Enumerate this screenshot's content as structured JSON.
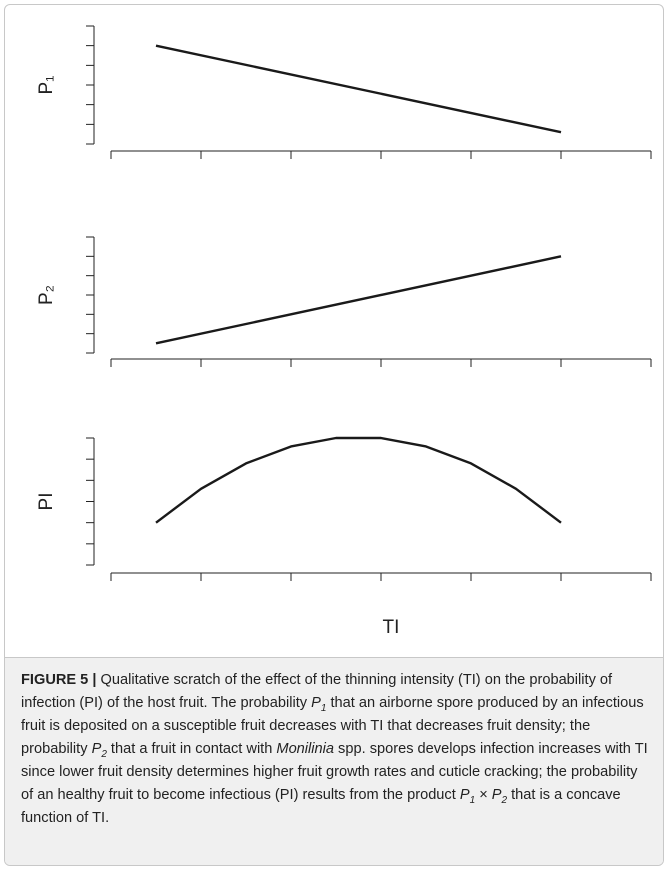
{
  "chart_data": [
    {
      "type": "line",
      "ylabel": "P₁",
      "x": [
        0.5,
        5
      ],
      "values": [
        5,
        0.6
      ],
      "color": "#1a1a1a",
      "xlim": [
        0,
        6
      ],
      "xticks": [
        0,
        1,
        2,
        3,
        4,
        5,
        6
      ],
      "ylim": [
        0,
        6
      ],
      "yticks": [
        0,
        1,
        2,
        3,
        4,
        5,
        6
      ]
    },
    {
      "type": "line",
      "ylabel": "P₂",
      "x": [
        0.5,
        5
      ],
      "values": [
        0.5,
        5
      ],
      "color": "#1a1a1a",
      "xlim": [
        0,
        6
      ],
      "xticks": [
        0,
        1,
        2,
        3,
        4,
        5,
        6
      ],
      "ylim": [
        0,
        6
      ],
      "yticks": [
        0,
        1,
        2,
        3,
        4,
        5,
        6
      ]
    },
    {
      "type": "line",
      "ylabel": "PI",
      "xlabel": "TI",
      "x": [
        0.5,
        1,
        1.5,
        2,
        2.5,
        3,
        3.5,
        4,
        4.5,
        5
      ],
      "values": [
        2,
        3.6,
        4.8,
        5.6,
        6,
        6,
        5.6,
        4.8,
        3.6,
        2
      ],
      "color": "#1a1a1a",
      "xlim": [
        0,
        6
      ],
      "xticks": [
        0,
        1,
        2,
        3,
        4,
        5,
        6
      ],
      "ylim": [
        0,
        6
      ],
      "yticks": [
        0,
        1,
        2,
        3,
        4,
        5,
        6
      ]
    }
  ],
  "caption": {
    "runs": [
      {
        "text": "FIGURE 5 | ",
        "style": "bold"
      },
      {
        "text": "Qualitative scratch of the effect of the thinning intensity (TI) on the probability of infection (PI) of the host fruit. The probability "
      },
      {
        "text": "P",
        "style": "italic"
      },
      {
        "text": "1",
        "style": "sub"
      },
      {
        "text": " that an airborne spore produced by an infectious fruit is deposited on a susceptible fruit decreases with TI that decreases fruit density; the probability "
      },
      {
        "text": "P",
        "style": "italic"
      },
      {
        "text": "2",
        "style": "sub"
      },
      {
        "text": " that a fruit in contact with "
      },
      {
        "text": "Monilinia",
        "style": "italic"
      },
      {
        "text": " spp. spores develops infection increases with TI since lower fruit density determines higher fruit growth rates and cuticle cracking; the probability of an healthy fruit to become infectious (PI) results from the product "
      },
      {
        "text": "P",
        "style": "italic"
      },
      {
        "text": "1",
        "style": "sub"
      },
      {
        "text": " × "
      },
      {
        "text": "P",
        "style": "italic"
      },
      {
        "text": "2",
        "style": "sub"
      },
      {
        "text": " that is a concave function of TI."
      }
    ]
  }
}
